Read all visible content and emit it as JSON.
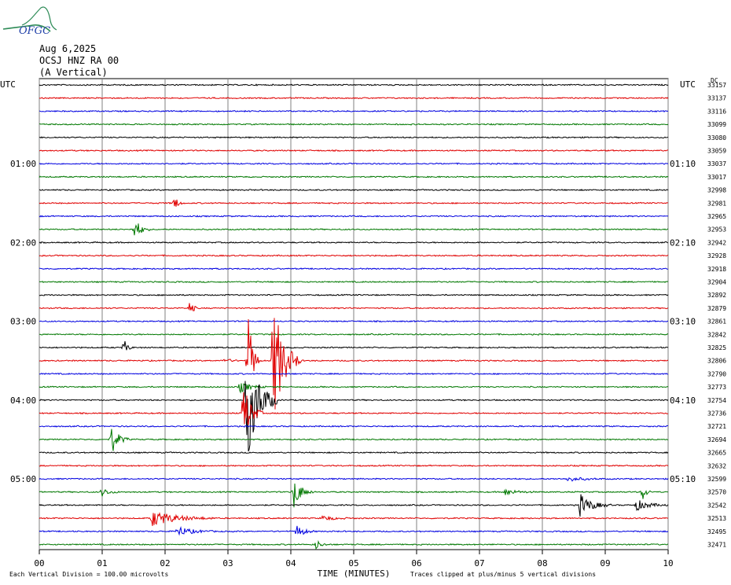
{
  "header": {
    "date": "Aug 6,2025",
    "station": "OCSJ HNZ RA 00",
    "component": "(A Vertical)",
    "logo_text": "OFGC",
    "logo_colors": {
      "wave": "#2e8b57",
      "text": "#1f3fa8"
    }
  },
  "chart_data": {
    "type": "line",
    "subtype": "helicorder",
    "xlabel": "TIME (MINUTES)",
    "xlim": [
      0,
      10
    ],
    "x_ticks": [
      "00",
      "01",
      "02",
      "03",
      "04",
      "05",
      "06",
      "07",
      "08",
      "09",
      "10"
    ],
    "left_axis_title": "UTC",
    "right_axis_title": "UTC",
    "left_time_labels": [
      {
        "row": 6,
        "label": "01:00"
      },
      {
        "row": 12,
        "label": "02:00"
      },
      {
        "row": 18,
        "label": "03:00"
      },
      {
        "row": 24,
        "label": "04:00"
      },
      {
        "row": 30,
        "label": "05:00"
      }
    ],
    "right_time_labels": [
      {
        "row": 6,
        "label": "01:10"
      },
      {
        "row": 12,
        "label": "02:10"
      },
      {
        "row": 18,
        "label": "03:10"
      },
      {
        "row": 24,
        "label": "04:10"
      },
      {
        "row": 30,
        "label": "05:10"
      }
    ],
    "dc_label": "DC",
    "trace_colors": [
      "#000000",
      "#e00000",
      "#0000e0",
      "#007800"
    ],
    "row_dc_values": [
      33157,
      33137,
      33116,
      33099,
      33080,
      33059,
      33037,
      33017,
      32998,
      32981,
      32965,
      32953,
      32942,
      32928,
      32918,
      32904,
      32892,
      32879,
      32861,
      32842,
      32825,
      32806,
      32790,
      32773,
      32754,
      32736,
      32721,
      32694,
      32665,
      32632,
      32599,
      32570,
      32542,
      32513,
      32495,
      32471
    ],
    "events": [
      {
        "row": 9,
        "minute": 2.15,
        "amp": 9,
        "dur": 0.15
      },
      {
        "row": 11,
        "minute": 1.52,
        "amp": 14,
        "dur": 0.25
      },
      {
        "row": 17,
        "minute": 2.4,
        "amp": 12,
        "dur": 0.12
      },
      {
        "row": 20,
        "minute": 1.35,
        "amp": 10,
        "dur": 0.15
      },
      {
        "row": 21,
        "minute": 2.95,
        "amp": 3,
        "dur": 0.25
      },
      {
        "row": 21,
        "minute": 3.32,
        "amp": 60,
        "dur": 0.2
      },
      {
        "row": 21,
        "minute": 3.72,
        "amp": 80,
        "dur": 0.45
      },
      {
        "row": 23,
        "minute": 3.2,
        "amp": 7,
        "dur": 0.4
      },
      {
        "row": 24,
        "minute": 3.3,
        "amp": 80,
        "dur": 0.5
      },
      {
        "row": 25,
        "minute": 3.25,
        "amp": 40,
        "dur": 0.3
      },
      {
        "row": 27,
        "minute": 1.15,
        "amp": 18,
        "dur": 0.3
      },
      {
        "row": 30,
        "minute": 8.4,
        "amp": 3,
        "dur": 0.6
      },
      {
        "row": 31,
        "minute": 1.0,
        "amp": 5,
        "dur": 0.3
      },
      {
        "row": 31,
        "minute": 4.05,
        "amp": 20,
        "dur": 0.3
      },
      {
        "row": 31,
        "minute": 7.4,
        "amp": 4,
        "dur": 0.5
      },
      {
        "row": 31,
        "minute": 9.6,
        "amp": 10,
        "dur": 0.15
      },
      {
        "row": 32,
        "minute": 8.6,
        "amp": 14,
        "dur": 0.5
      },
      {
        "row": 32,
        "minute": 9.5,
        "amp": 7,
        "dur": 0.5
      },
      {
        "row": 33,
        "minute": 1.8,
        "amp": 10,
        "dur": 1.0
      },
      {
        "row": 33,
        "minute": 4.5,
        "amp": 3,
        "dur": 0.5
      },
      {
        "row": 34,
        "minute": 2.2,
        "amp": 6,
        "dur": 0.6
      },
      {
        "row": 34,
        "minute": 4.1,
        "amp": 8,
        "dur": 0.3
      },
      {
        "row": 35,
        "minute": 4.4,
        "amp": 6,
        "dur": 0.2
      }
    ],
    "footer_scale_note": "Each Vertical Division =  100.00 microvolts",
    "footer_clip_note": "Traces clipped at plus/minus 5 vertical divisions"
  }
}
